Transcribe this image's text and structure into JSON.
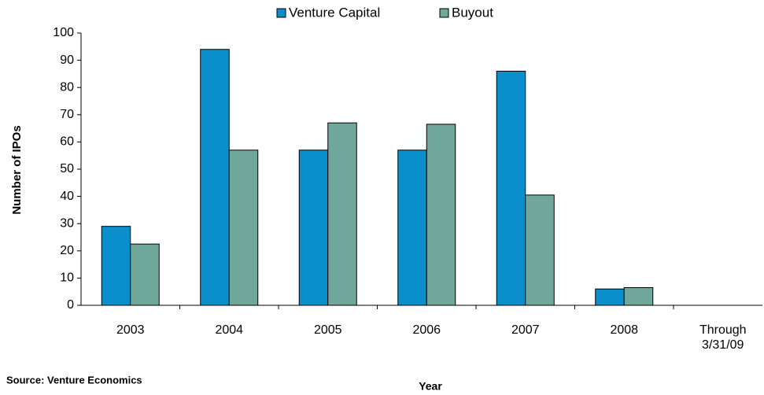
{
  "chart_data": {
    "type": "bar",
    "categories": [
      "2003",
      "2004",
      "2005",
      "2006",
      "2007",
      "2008",
      "Through 3/31/09"
    ],
    "series": [
      {
        "name": "Venture Capital",
        "color": "#0b8fcc",
        "values": [
          29,
          94,
          57,
          57,
          86,
          6,
          0
        ]
      },
      {
        "name": "Buyout",
        "color": "#6fa89a",
        "values": [
          22.5,
          57,
          67,
          66.5,
          40.5,
          6.5,
          0
        ]
      }
    ],
    "ylim": [
      0,
      100
    ],
    "yticks": [
      0,
      10,
      20,
      30,
      40,
      50,
      60,
      70,
      80,
      90,
      100
    ],
    "y_label": "Number of IPOs",
    "x_label": "Year",
    "source": "Source:  Venture Economics",
    "grid": false,
    "legend": "top"
  }
}
